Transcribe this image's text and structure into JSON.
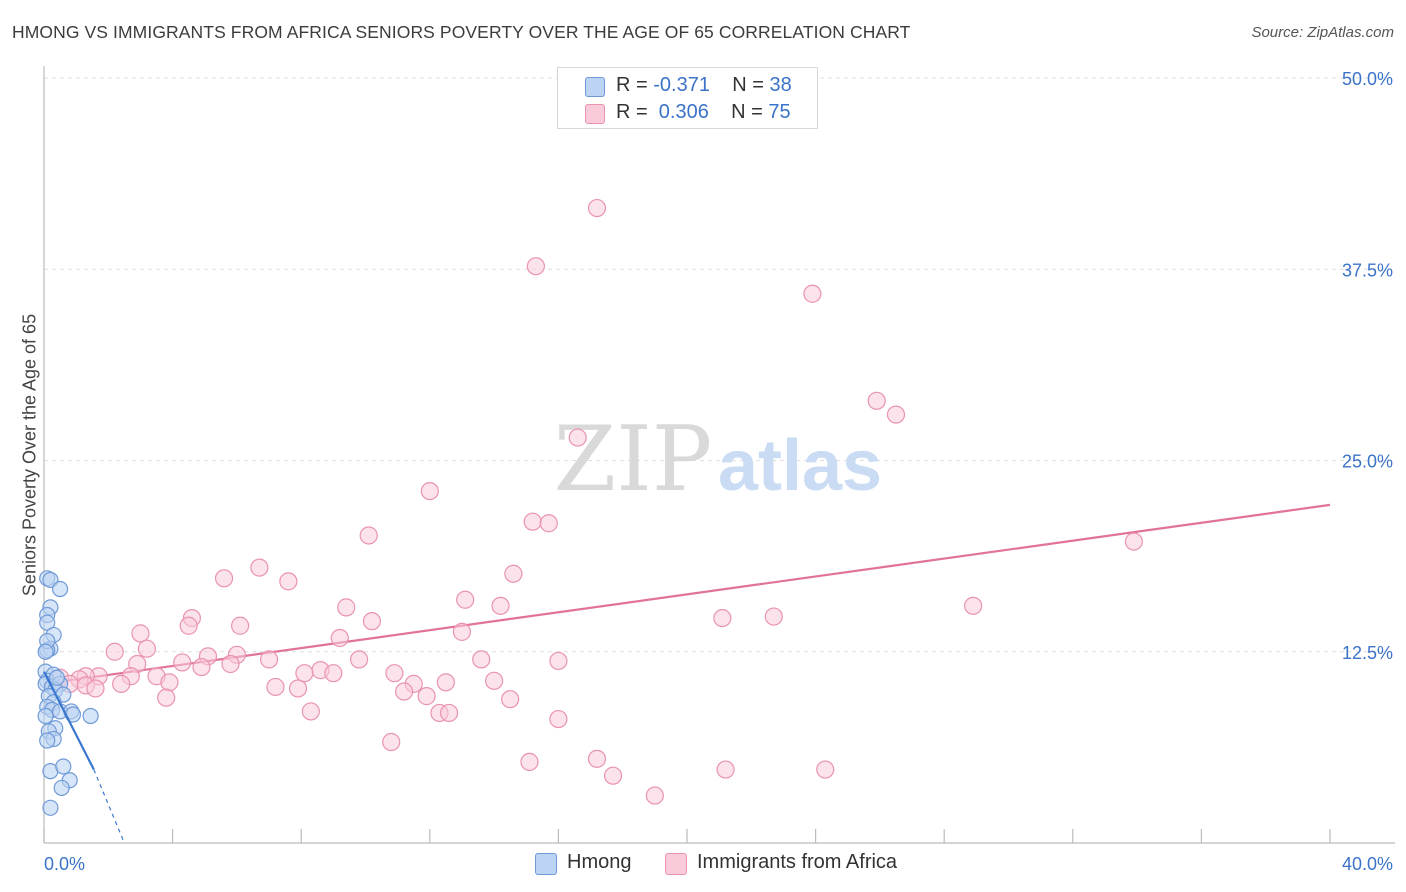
{
  "header": {
    "title": "HMONG VS IMMIGRANTS FROM AFRICA SENIORS POVERTY OVER THE AGE OF 65 CORRELATION CHART",
    "source": "Source: ZipAtlas.com"
  },
  "watermark": {
    "zip": "ZIP",
    "atlas": "atlas"
  },
  "legend": {
    "rows": [
      {
        "r_label": "R = ",
        "r_value": "-0.371",
        "n_label": "N = ",
        "n_value": "38"
      },
      {
        "r_label": "R = ",
        "r_value": " 0.306",
        "n_label": "N = ",
        "n_value": "75"
      }
    ]
  },
  "colors": {
    "hmong_fill": "#bcd3f3",
    "hmong_stroke": "#6f9ad8",
    "hmong_line": "#3a78cf",
    "africa_fill": "#f9cbd8",
    "africa_stroke": "#e993b2",
    "africa_line": "#e0729b",
    "tick_text": "#3b73c8",
    "grid": "#dedede"
  },
  "chart_data": {
    "type": "scatter",
    "title": "HMONG VS IMMIGRANTS FROM AFRICA SENIORS POVERTY OVER THE AGE OF 65 CORRELATION CHART",
    "xlabel": "",
    "ylabel": "Seniors Poverty Over the Age of 65",
    "xlim": [
      0,
      40
    ],
    "ylim": [
      0,
      50
    ],
    "x_tick_labels": [
      "0.0%",
      "40.0%"
    ],
    "y_ticks": [
      12.5,
      25.0,
      37.5,
      50.0
    ],
    "y_tick_labels": [
      "12.5%",
      "25.0%",
      "37.5%",
      "50.0%"
    ],
    "grid": true,
    "legend_position": "bottom-center",
    "series": [
      {
        "name": "Hmong",
        "R": -0.371,
        "N": 38,
        "trend": {
          "x": [
            0.0,
            1.55
          ],
          "y": [
            11.2,
            4.8
          ],
          "dashed_to": [
            2.5,
            0.0
          ]
        },
        "points": [
          [
            0.1,
            17.3
          ],
          [
            0.2,
            17.2
          ],
          [
            0.5,
            16.6
          ],
          [
            0.2,
            15.4
          ],
          [
            0.1,
            14.9
          ],
          [
            0.1,
            14.4
          ],
          [
            0.3,
            13.6
          ],
          [
            0.2,
            12.7
          ],
          [
            0.1,
            12.6
          ],
          [
            0.1,
            13.2
          ],
          [
            0.05,
            11.2
          ],
          [
            0.3,
            11.0
          ],
          [
            0.1,
            10.6
          ],
          [
            0.05,
            10.4
          ],
          [
            0.25,
            10.2
          ],
          [
            0.5,
            10.4
          ],
          [
            0.35,
            10.0
          ],
          [
            0.6,
            9.7
          ],
          [
            0.15,
            9.6
          ],
          [
            0.3,
            9.2
          ],
          [
            0.1,
            8.9
          ],
          [
            0.25,
            8.7
          ],
          [
            0.5,
            8.6
          ],
          [
            0.85,
            8.6
          ],
          [
            0.9,
            8.4
          ],
          [
            1.45,
            8.3
          ],
          [
            0.05,
            8.3
          ],
          [
            0.35,
            7.5
          ],
          [
            0.15,
            7.3
          ],
          [
            0.3,
            6.8
          ],
          [
            0.1,
            6.7
          ],
          [
            0.2,
            4.7
          ],
          [
            0.6,
            5.0
          ],
          [
            0.8,
            4.1
          ],
          [
            0.55,
            3.6
          ],
          [
            0.2,
            2.3
          ],
          [
            0.05,
            12.5
          ],
          [
            0.4,
            10.8
          ]
        ]
      },
      {
        "name": "Immigrants from Africa",
        "R": 0.306,
        "N": 75,
        "trend": {
          "x": [
            0.0,
            40.0
          ],
          "y": [
            10.4,
            22.1
          ]
        },
        "points": [
          [
            17.2,
            41.5
          ],
          [
            15.3,
            37.7
          ],
          [
            23.9,
            35.9
          ],
          [
            25.9,
            28.9
          ],
          [
            26.5,
            28.0
          ],
          [
            16.6,
            26.5
          ],
          [
            12.0,
            23.0
          ],
          [
            15.2,
            21.0
          ],
          [
            15.7,
            20.9
          ],
          [
            10.1,
            20.1
          ],
          [
            33.9,
            19.7
          ],
          [
            6.7,
            18.0
          ],
          [
            5.6,
            17.3
          ],
          [
            7.6,
            17.1
          ],
          [
            14.6,
            17.6
          ],
          [
            13.1,
            15.9
          ],
          [
            14.2,
            15.5
          ],
          [
            9.4,
            15.4
          ],
          [
            28.9,
            15.5
          ],
          [
            21.1,
            14.7
          ],
          [
            22.7,
            14.8
          ],
          [
            4.6,
            14.7
          ],
          [
            4.5,
            14.2
          ],
          [
            6.1,
            14.2
          ],
          [
            10.2,
            14.5
          ],
          [
            3.0,
            13.7
          ],
          [
            13.0,
            13.8
          ],
          [
            9.2,
            13.4
          ],
          [
            3.2,
            12.7
          ],
          [
            2.2,
            12.5
          ],
          [
            5.1,
            12.2
          ],
          [
            6.0,
            12.3
          ],
          [
            7.0,
            12.0
          ],
          [
            9.8,
            12.0
          ],
          [
            13.6,
            12.0
          ],
          [
            16.0,
            11.9
          ],
          [
            2.9,
            11.7
          ],
          [
            4.3,
            11.8
          ],
          [
            4.9,
            11.5
          ],
          [
            5.8,
            11.7
          ],
          [
            8.6,
            11.3
          ],
          [
            9.0,
            11.1
          ],
          [
            10.9,
            11.1
          ],
          [
            8.1,
            11.1
          ],
          [
            2.7,
            10.9
          ],
          [
            3.5,
            10.9
          ],
          [
            1.7,
            10.9
          ],
          [
            1.3,
            10.9
          ],
          [
            1.1,
            10.7
          ],
          [
            0.5,
            10.8
          ],
          [
            0.8,
            10.4
          ],
          [
            1.3,
            10.3
          ],
          [
            2.4,
            10.4
          ],
          [
            3.9,
            10.5
          ],
          [
            11.5,
            10.4
          ],
          [
            12.5,
            10.5
          ],
          [
            14.0,
            10.6
          ],
          [
            1.6,
            10.1
          ],
          [
            7.2,
            10.2
          ],
          [
            7.9,
            10.1
          ],
          [
            11.2,
            9.9
          ],
          [
            11.9,
            9.6
          ],
          [
            3.8,
            9.5
          ],
          [
            14.5,
            9.4
          ],
          [
            8.3,
            8.6
          ],
          [
            12.3,
            8.5
          ],
          [
            12.6,
            8.5
          ],
          [
            16.0,
            8.1
          ],
          [
            10.8,
            6.6
          ],
          [
            17.2,
            5.5
          ],
          [
            15.1,
            5.3
          ],
          [
            21.2,
            4.8
          ],
          [
            17.7,
            4.4
          ],
          [
            24.3,
            4.8
          ],
          [
            19.0,
            3.1
          ]
        ]
      }
    ]
  },
  "bottom_legend": {
    "items": [
      "Hmong",
      "Immigrants from Africa"
    ]
  }
}
